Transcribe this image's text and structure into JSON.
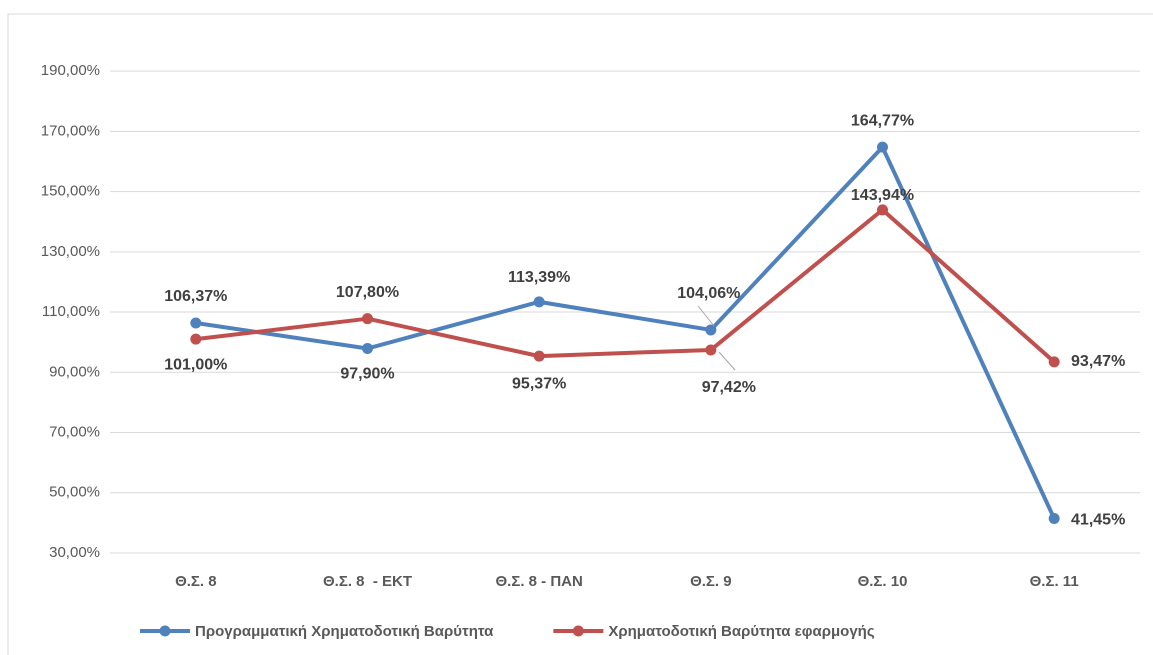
{
  "chart_data": {
    "type": "line",
    "categories": [
      "Θ.Σ. 8",
      "Θ.Σ. 8  - ΕΚΤ",
      "Θ.Σ. 8 - ΠΑΝ",
      "Θ.Σ. 9",
      "Θ.Σ. 10",
      "Θ.Σ. 11"
    ],
    "series": [
      {
        "name": "Προγραμματική Χρηματοδοτική Βαρύτητα",
        "color": "#4f81bd",
        "values": [
          106.37,
          97.9,
          113.39,
          104.06,
          164.77,
          41.45
        ],
        "value_labels": [
          "106,37%",
          "97,90%",
          "113,39%",
          "104,06%",
          "164,77%",
          "41,45%"
        ]
      },
      {
        "name": "Χρηματοδοτική Βαρύτητα εφαρμογής",
        "color": "#c0504d",
        "values": [
          101.0,
          107.8,
          95.37,
          97.42,
          143.94,
          93.47
        ],
        "value_labels": [
          "101,00%",
          "107,80%",
          "95,37%",
          "97,42%",
          "143,94%",
          "93,47%"
        ]
      }
    ],
    "ylim": [
      30,
      200
    ],
    "yticks": [
      {
        "value": 30,
        "label": "30,00%"
      },
      {
        "value": 50,
        "label": "50,00%"
      },
      {
        "value": 70,
        "label": "70,00%"
      },
      {
        "value": 90,
        "label": "90,00%"
      },
      {
        "value": 110,
        "label": "110,00%"
      },
      {
        "value": 130,
        "label": "130,00%"
      },
      {
        "value": 150,
        "label": "150,00%"
      },
      {
        "value": 170,
        "label": "170,00%"
      },
      {
        "value": 190,
        "label": "190,00%"
      }
    ],
    "grid": true,
    "legend": "bottom"
  }
}
